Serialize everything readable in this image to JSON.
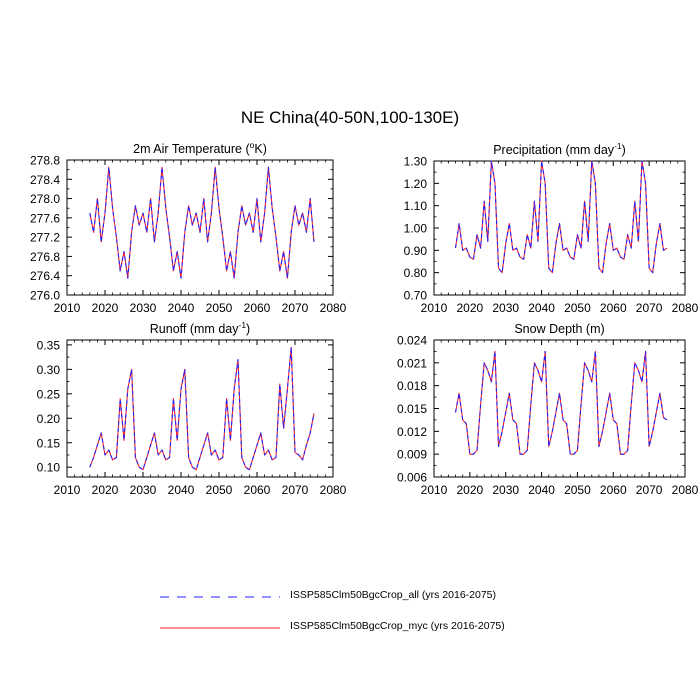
{
  "title": "NE China(40-50N,100-130E)",
  "colors": {
    "all": "#2222ff",
    "myc": "#ff2222"
  },
  "legend": [
    {
      "label": "ISSP585Clm50BgcCrop_all (yrs 2016-2075)",
      "color": "#2222ff",
      "style": "dashed"
    },
    {
      "label": "ISSP585Clm50BgcCrop_myc (yrs 2016-2075)",
      "color": "#ff2222",
      "style": "solid"
    }
  ],
  "chart_data": [
    {
      "type": "line",
      "title": "2m Air Temperature (",
      "title_sup": "o",
      "title_end": "K)",
      "xlim": [
        2010,
        2080
      ],
      "ylim": [
        276.0,
        278.8
      ],
      "xticks": [
        2010,
        2020,
        2030,
        2040,
        2050,
        2060,
        2070,
        2080
      ],
      "yticks": [
        "276.0",
        "276.4",
        "276.8",
        "277.2",
        "277.6",
        "278.0",
        "278.4",
        "278.8"
      ],
      "x_start": 2016,
      "series": [
        {
          "color": "#2222ff",
          "style": "dashed",
          "values": [
            277.7,
            277.3,
            278.0,
            277.1,
            277.7,
            278.65,
            277.8,
            277.2,
            276.5,
            276.9,
            276.35,
            277.3,
            277.85,
            277.45,
            277.7,
            277.3,
            278.0,
            277.1,
            277.7,
            278.65,
            277.8,
            277.2,
            276.5,
            276.9,
            276.35,
            277.3,
            277.85,
            277.45,
            277.7,
            277.3,
            278.0,
            277.1,
            277.7,
            278.65,
            277.8,
            277.2,
            276.5,
            276.9,
            276.35,
            277.3,
            277.85,
            277.45,
            277.7,
            277.3,
            278.0,
            277.1,
            277.7,
            278.65,
            277.8,
            277.2,
            276.5,
            276.9,
            276.35,
            277.3,
            277.85,
            277.45,
            277.7,
            277.3,
            278.0,
            277.1
          ]
        },
        {
          "color": "#ff2222",
          "style": "solid",
          "values": [
            277.7,
            277.3,
            278.0,
            277.1,
            277.7,
            278.65,
            277.8,
            277.2,
            276.5,
            276.9,
            276.35,
            277.3,
            277.85,
            277.45,
            277.7,
            277.3,
            278.0,
            277.1,
            277.7,
            278.65,
            277.8,
            277.2,
            276.5,
            276.9,
            276.35,
            277.3,
            277.85,
            277.45,
            277.7,
            277.3,
            278.0,
            277.1,
            277.7,
            278.65,
            277.8,
            277.2,
            276.5,
            276.9,
            276.35,
            277.3,
            277.85,
            277.45,
            277.7,
            277.3,
            278.0,
            277.1,
            277.7,
            278.65,
            277.8,
            277.2,
            276.5,
            276.9,
            276.35,
            277.3,
            277.85,
            277.45,
            277.7,
            277.3,
            278.0,
            277.1
          ]
        }
      ]
    },
    {
      "type": "line",
      "title": "Precipitation (mm day",
      "title_sup": "-1",
      "title_end": ")",
      "xlim": [
        2010,
        2080
      ],
      "ylim": [
        0.7,
        1.3
      ],
      "xticks": [
        2010,
        2020,
        2030,
        2040,
        2050,
        2060,
        2070,
        2080
      ],
      "yticks": [
        "0.70",
        "0.80",
        "0.90",
        "1.00",
        "1.10",
        "1.20",
        "1.30"
      ],
      "x_start": 2016,
      "series": [
        {
          "color": "#2222ff",
          "style": "dashed",
          "values": [
            0.91,
            1.02,
            0.9,
            0.91,
            0.87,
            0.86,
            0.97,
            0.91,
            1.12,
            0.94,
            1.3,
            1.2,
            0.82,
            0.8,
            0.93,
            1.02,
            0.9,
            0.91,
            0.87,
            0.86,
            0.97,
            0.91,
            1.12,
            0.94,
            1.3,
            1.2,
            0.82,
            0.8,
            0.93,
            1.02,
            0.9,
            0.91,
            0.87,
            0.86,
            0.97,
            0.91,
            1.12,
            0.94,
            1.3,
            1.2,
            0.82,
            0.8,
            0.93,
            1.02,
            0.9,
            0.91,
            0.87,
            0.86,
            0.97,
            0.91,
            1.12,
            0.94,
            1.3,
            1.2,
            0.82,
            0.8,
            0.93,
            1.02,
            0.9,
            0.91
          ]
        },
        {
          "color": "#ff2222",
          "style": "solid",
          "values": [
            0.91,
            1.02,
            0.9,
            0.91,
            0.87,
            0.86,
            0.97,
            0.91,
            1.12,
            0.94,
            1.3,
            1.2,
            0.82,
            0.8,
            0.93,
            1.02,
            0.9,
            0.91,
            0.87,
            0.86,
            0.97,
            0.91,
            1.12,
            0.94,
            1.3,
            1.2,
            0.82,
            0.8,
            0.93,
            1.02,
            0.9,
            0.91,
            0.87,
            0.86,
            0.97,
            0.91,
            1.12,
            0.94,
            1.3,
            1.2,
            0.82,
            0.8,
            0.93,
            1.02,
            0.9,
            0.91,
            0.87,
            0.86,
            0.97,
            0.91,
            1.12,
            0.94,
            1.3,
            1.2,
            0.82,
            0.8,
            0.93,
            1.02,
            0.9,
            0.91
          ]
        }
      ]
    },
    {
      "type": "line",
      "title": "Runoff (mm day",
      "title_sup": "-1",
      "title_end": ")",
      "xlim": [
        2010,
        2080
      ],
      "ylim": [
        0.08,
        0.36
      ],
      "xticks": [
        2010,
        2020,
        2030,
        2040,
        2050,
        2060,
        2070,
        2080
      ],
      "yticks": [
        "0.10",
        "0.15",
        "0.20",
        "0.25",
        "0.30",
        "0.35"
      ],
      "ytick_values": [
        0.1,
        0.15,
        0.2,
        0.25,
        0.3,
        0.35
      ],
      "x_start": 2016,
      "series": [
        {
          "color": "#2222ff",
          "style": "dashed",
          "values": [
            0.1,
            0.12,
            0.145,
            0.17,
            0.125,
            0.135,
            0.115,
            0.12,
            0.24,
            0.155,
            0.26,
            0.3,
            0.12,
            0.1,
            0.095,
            0.12,
            0.145,
            0.17,
            0.125,
            0.135,
            0.115,
            0.12,
            0.24,
            0.155,
            0.26,
            0.3,
            0.12,
            0.1,
            0.095,
            0.12,
            0.145,
            0.17,
            0.125,
            0.135,
            0.115,
            0.12,
            0.24,
            0.155,
            0.26,
            0.32,
            0.12,
            0.1,
            0.095,
            0.12,
            0.145,
            0.17,
            0.125,
            0.135,
            0.115,
            0.12,
            0.27,
            0.18,
            0.26,
            0.345,
            0.13,
            0.125,
            0.115,
            0.145,
            0.17,
            0.21
          ]
        },
        {
          "color": "#ff2222",
          "style": "solid",
          "values": [
            0.1,
            0.12,
            0.145,
            0.17,
            0.125,
            0.135,
            0.115,
            0.12,
            0.24,
            0.155,
            0.26,
            0.3,
            0.12,
            0.1,
            0.095,
            0.12,
            0.145,
            0.17,
            0.125,
            0.135,
            0.115,
            0.12,
            0.24,
            0.155,
            0.26,
            0.3,
            0.12,
            0.1,
            0.095,
            0.12,
            0.145,
            0.17,
            0.125,
            0.135,
            0.115,
            0.12,
            0.24,
            0.155,
            0.26,
            0.32,
            0.12,
            0.1,
            0.095,
            0.12,
            0.145,
            0.17,
            0.125,
            0.135,
            0.115,
            0.12,
            0.27,
            0.18,
            0.26,
            0.345,
            0.13,
            0.125,
            0.115,
            0.145,
            0.17,
            0.21
          ]
        }
      ]
    },
    {
      "type": "line",
      "title": "Snow Depth (m)",
      "title_sup": "",
      "title_end": "",
      "xlim": [
        2010,
        2080
      ],
      "ylim": [
        0.006,
        0.024
      ],
      "xticks": [
        2010,
        2020,
        2030,
        2040,
        2050,
        2060,
        2070,
        2080
      ],
      "yticks": [
        "0.006",
        "0.009",
        "0.012",
        "0.015",
        "0.018",
        "0.021",
        "0.024"
      ],
      "x_start": 2016,
      "series": [
        {
          "color": "#2222ff",
          "style": "dashed",
          "values": [
            0.0145,
            0.017,
            0.0135,
            0.013,
            0.009,
            0.009,
            0.0095,
            0.0155,
            0.021,
            0.02,
            0.0185,
            0.0225,
            0.01,
            0.012,
            0.0145,
            0.017,
            0.0135,
            0.013,
            0.009,
            0.009,
            0.0095,
            0.0155,
            0.021,
            0.02,
            0.0185,
            0.0225,
            0.01,
            0.012,
            0.0145,
            0.017,
            0.0135,
            0.013,
            0.009,
            0.009,
            0.0095,
            0.0155,
            0.021,
            0.02,
            0.0185,
            0.0225,
            0.01,
            0.012,
            0.0145,
            0.017,
            0.0135,
            0.013,
            0.009,
            0.009,
            0.0095,
            0.0155,
            0.021,
            0.02,
            0.0185,
            0.0225,
            0.01,
            0.012,
            0.0145,
            0.017,
            0.0138,
            0.0135
          ]
        },
        {
          "color": "#ff2222",
          "style": "solid",
          "values": [
            0.0145,
            0.017,
            0.0135,
            0.013,
            0.009,
            0.009,
            0.0095,
            0.0155,
            0.021,
            0.02,
            0.0185,
            0.0225,
            0.01,
            0.012,
            0.0145,
            0.017,
            0.0135,
            0.013,
            0.009,
            0.009,
            0.0095,
            0.0155,
            0.021,
            0.02,
            0.0185,
            0.0225,
            0.01,
            0.012,
            0.0145,
            0.017,
            0.0135,
            0.013,
            0.009,
            0.009,
            0.0095,
            0.0155,
            0.021,
            0.02,
            0.0185,
            0.0225,
            0.01,
            0.012,
            0.0145,
            0.017,
            0.0135,
            0.013,
            0.009,
            0.009,
            0.0095,
            0.0155,
            0.021,
            0.02,
            0.0185,
            0.0225,
            0.01,
            0.012,
            0.0145,
            0.017,
            0.0138,
            0.0135
          ]
        }
      ]
    }
  ]
}
